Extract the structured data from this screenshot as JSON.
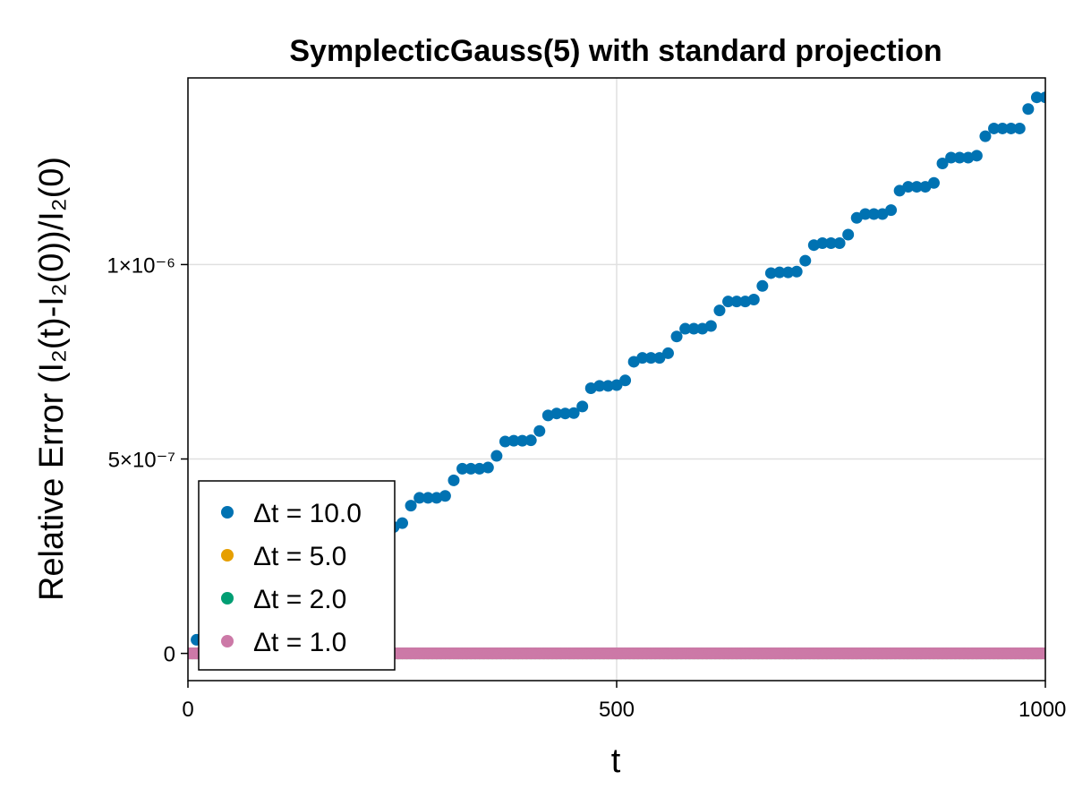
{
  "chart_data": {
    "type": "scatter",
    "title": "SymplecticGauss(5) with standard projection",
    "xlabel": "t",
    "ylabel": "Relative Error (I₂(t)-I₂(0))/I₂(0)",
    "xlim": [
      0,
      1000
    ],
    "ylim": [
      -7e-08,
      1.48e-06
    ],
    "x_ticks": [
      {
        "value": 0,
        "label": "0"
      },
      {
        "value": 500,
        "label": "500"
      },
      {
        "value": 1000,
        "label": "1000"
      }
    ],
    "y_ticks": [
      {
        "value": 0,
        "label": "0"
      },
      {
        "value": 5e-07,
        "label": "5×10⁻⁷"
      },
      {
        "value": 1e-06,
        "label": "1×10⁻⁶"
      }
    ],
    "grid": true,
    "legend_position": "bottom-left",
    "series": [
      {
        "name": "Δt = 10.0",
        "color": "#0072b2",
        "x": [
          10,
          20,
          30,
          40,
          50,
          60,
          70,
          80,
          90,
          100,
          110,
          120,
          130,
          140,
          150,
          160,
          170,
          180,
          190,
          200,
          210,
          220,
          230,
          240,
          250,
          260,
          270,
          280,
          290,
          300,
          310,
          320,
          330,
          340,
          350,
          360,
          370,
          380,
          390,
          400,
          410,
          420,
          430,
          440,
          450,
          460,
          470,
          480,
          490,
          500,
          510,
          520,
          530,
          540,
          550,
          560,
          570,
          580,
          590,
          600,
          610,
          620,
          630,
          640,
          650,
          660,
          670,
          680,
          690,
          700,
          710,
          720,
          730,
          740,
          750,
          760,
          770,
          780,
          790,
          800,
          810,
          820,
          830,
          840,
          850,
          860,
          870,
          880,
          890,
          900,
          910,
          920,
          930,
          940,
          950,
          960,
          970,
          980,
          990,
          1000
        ],
        "y": [
          3.5e-08,
          4e-08,
          4e-08,
          4e-08,
          6e-08,
          1e-07,
          1.07e-07,
          1.07e-07,
          1.07e-07,
          1.14e-07,
          1.55e-07,
          1.78e-07,
          1.8e-07,
          1.8e-07,
          1.95e-07,
          2.5e-07,
          2.6e-07,
          2.6e-07,
          2.62e-07,
          2.7e-07,
          3.05e-07,
          3.2e-07,
          3.25e-07,
          3.25e-07,
          3.35e-07,
          3.8e-07,
          4e-07,
          4e-07,
          4e-07,
          4.05e-07,
          4.45e-07,
          4.75e-07,
          4.75e-07,
          4.75e-07,
          4.78e-07,
          5.08e-07,
          5.45e-07,
          5.47e-07,
          5.47e-07,
          5.48e-07,
          5.72e-07,
          6.12e-07,
          6.17e-07,
          6.17e-07,
          6.18e-07,
          6.35e-07,
          6.82e-07,
          6.88e-07,
          6.88e-07,
          6.9e-07,
          7.02e-07,
          7.5e-07,
          7.6e-07,
          7.6e-07,
          7.6e-07,
          7.72e-07,
          8.15e-07,
          8.35e-07,
          8.35e-07,
          8.35e-07,
          8.42e-07,
          8.82e-07,
          9.05e-07,
          9.05e-07,
          9.05e-07,
          9.1e-07,
          9.45e-07,
          9.78e-07,
          9.8e-07,
          9.8e-07,
          9.82e-07,
          1.01e-06,
          1.05e-06,
          1.055e-06,
          1.055e-06,
          1.055e-06,
          1.077e-06,
          1.12e-06,
          1.13e-06,
          1.13e-06,
          1.13e-06,
          1.14e-06,
          1.19e-06,
          1.2e-06,
          1.2e-06,
          1.2e-06,
          1.21e-06,
          1.26e-06,
          1.275e-06,
          1.275e-06,
          1.275e-06,
          1.28e-06,
          1.33e-06,
          1.35e-06,
          1.35e-06,
          1.35e-06,
          1.35e-06,
          1.4e-06,
          1.43e-06,
          1.43e-06
        ]
      },
      {
        "name": "Δt = 5.0",
        "color": "#e69f00",
        "x_range": [
          0,
          1000
        ],
        "x_step": 5,
        "y_constant": 0
      },
      {
        "name": "Δt = 2.0",
        "color": "#009e73",
        "x_range": [
          0,
          1000
        ],
        "x_step": 2,
        "y_constant": 0
      },
      {
        "name": "Δt = 1.0",
        "color": "#cc79a7",
        "x_range": [
          0,
          1000
        ],
        "x_step": 1,
        "y_constant": 0
      }
    ]
  }
}
